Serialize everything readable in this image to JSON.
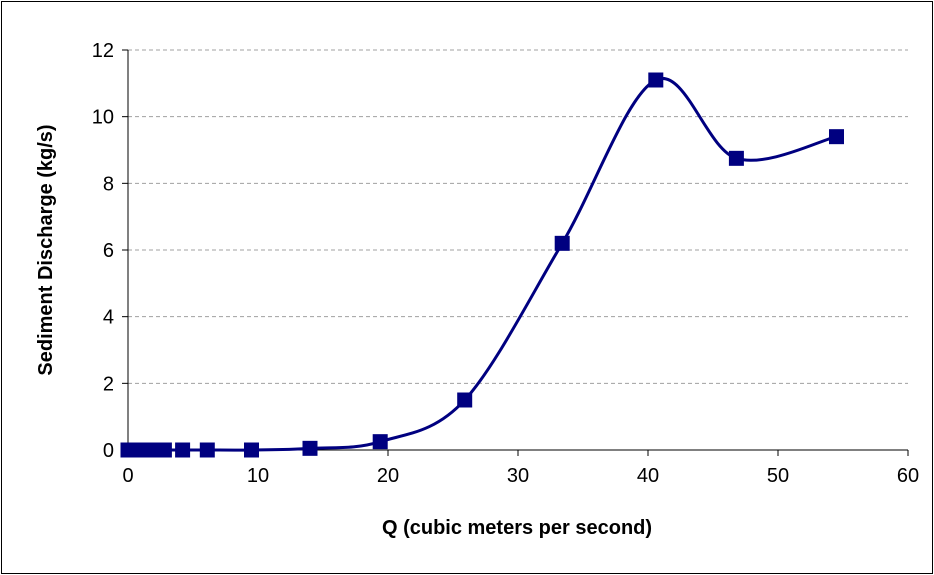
{
  "chart_data": {
    "type": "line",
    "title": "",
    "xlabel": "Q (cubic meters per second)",
    "ylabel": "Sediment Discharge (kg/s)",
    "xlim": [
      0,
      60
    ],
    "ylim": [
      0,
      12
    ],
    "x_ticks": [
      "0",
      "10",
      "20",
      "30",
      "40",
      "50",
      "60"
    ],
    "y_ticks": [
      "0",
      "2",
      "4",
      "6",
      "8",
      "10",
      "12"
    ],
    "grid": "horizontal dashed",
    "legend": "none",
    "series": [
      {
        "color": "#000080",
        "marker": "square",
        "smoothed": true,
        "x": [
          0.0,
          0.5,
          1.2,
          2.0,
          2.8,
          4.2,
          6.1,
          9.5,
          14.0,
          19.4,
          25.9,
          33.4,
          40.6,
          46.8,
          54.5
        ],
        "y": [
          0.0,
          0.0,
          0.0,
          0.0,
          0.0,
          0.0,
          0.0,
          0.0,
          0.05,
          0.25,
          1.5,
          6.2,
          11.1,
          8.75,
          9.4
        ]
      }
    ]
  }
}
